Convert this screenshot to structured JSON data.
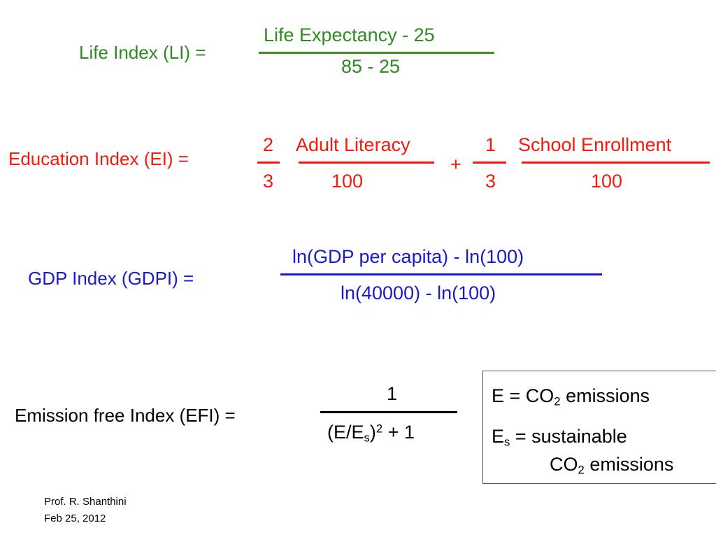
{
  "life_index": {
    "label": "Life Index (LI) =",
    "numerator": "Life Expectancy - 25",
    "denominator": "85 - 25",
    "color": "#2e8b1f"
  },
  "education_index": {
    "label": "Education Index (EI) =",
    "term1_num": "2",
    "term1_den": "3",
    "literacy_num": "Adult Literacy",
    "literacy_den": "100",
    "plus": "+",
    "term2_num": "1",
    "term2_den": "3",
    "enroll_num": "School Enrollment",
    "enroll_den": "100",
    "color": "#f41a0d"
  },
  "gdp_index": {
    "label": "GDP Index (GDPI) =",
    "numerator": "ln(GDP per capita) - ln(100)",
    "denominator": "ln(40000) - ln(100)",
    "color": "#1a1acb"
  },
  "emission_index": {
    "label": "Emission free Index (EFI) =",
    "numerator": "1",
    "den_open": "(E/E",
    "den_sub": "s",
    "den_close": ")",
    "den_sup": "2",
    "den_tail": " + 1"
  },
  "definitions": {
    "e_prefix": "E = CO",
    "e_sub": "2",
    "e_suffix": " emissions",
    "es_prefix": "E",
    "es_sub": "s",
    "es_suffix": " = sustainable",
    "es_line2_prefix": "CO",
    "es_line2_sub": "2",
    "es_line2_suffix": " emissions"
  },
  "footer": {
    "author": "Prof. R. Shanthini",
    "date": "Feb 25, 2012"
  }
}
